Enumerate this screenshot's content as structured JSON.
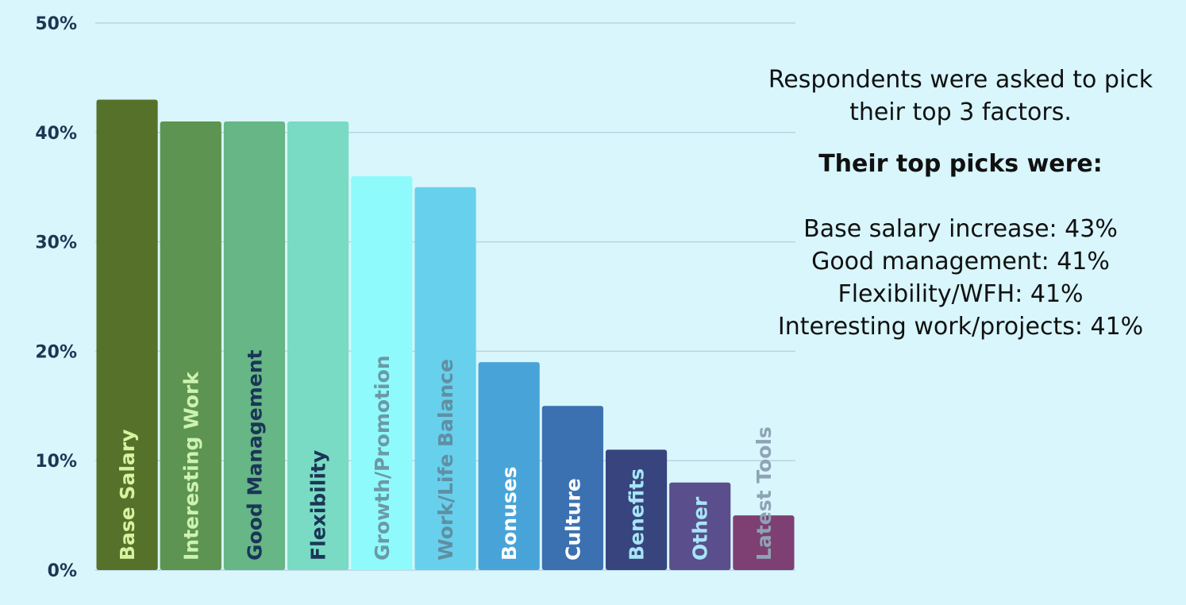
{
  "chart_data": {
    "type": "bar",
    "categories": [
      "Base Salary",
      "Interesting Work",
      "Good Management",
      "Flexibility",
      "Growth/Promotion",
      "Work/Life Balance",
      "Bonuses",
      "Culture",
      "Benefits",
      "Other",
      "Latest Tools"
    ],
    "values": [
      43,
      41,
      41,
      41,
      36,
      35,
      19,
      15,
      11,
      8,
      5
    ],
    "bar_colors": [
      "#56712a",
      "#5d9451",
      "#66b686",
      "#79dbc3",
      "#8ffafc",
      "#67d0ec",
      "#48a4d8",
      "#3b71b1",
      "#37447e",
      "#5a4e8c",
      "#7e3f73"
    ],
    "label_colors": [
      "#d8f2a0",
      "#cdf3b0",
      "#1b3557",
      "#1b3557",
      "#6a9aa6",
      "#5f8fa3",
      "#ffffff",
      "#ffffff",
      "#a6e5f5",
      "#a6e5f5",
      "#8fa3b4"
    ],
    "yticks": [
      "0%",
      "10%",
      "20%",
      "30%",
      "40%",
      "50%"
    ],
    "ylim": [
      0,
      50
    ],
    "grid": true,
    "grid_color": "#b8d4e2",
    "title": "",
    "xlabel": "",
    "ylabel": ""
  },
  "note": {
    "intro": "Respondents were asked to pick their top 3 factors.",
    "heading": "Their top picks were:",
    "picks": [
      "Base salary increase: 43%",
      "Good management: 41%",
      "Flexibility/WFH: 41%",
      "Interesting work/projects: 41%"
    ]
  }
}
